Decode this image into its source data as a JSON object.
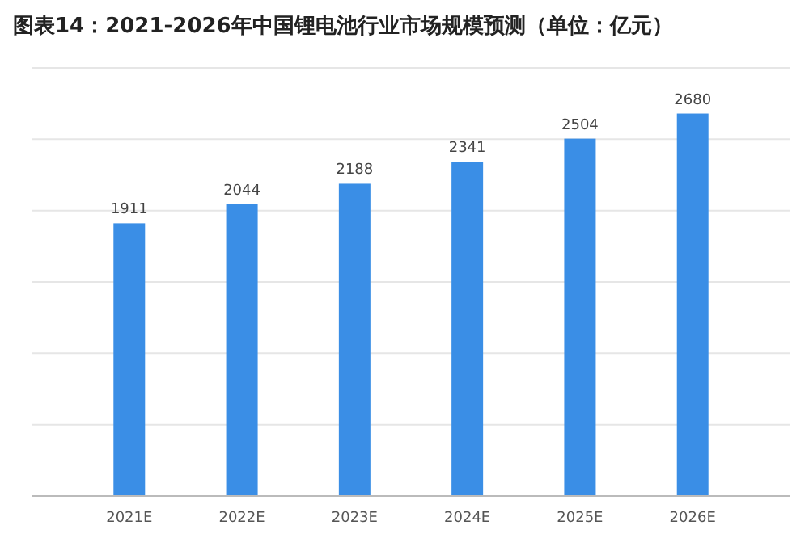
{
  "chart_data": {
    "type": "bar",
    "title": "图表14：2021-2026年中国锂电池行业市场规模预测（单位：亿元）",
    "categories": [
      "2021E",
      "2022E",
      "2023E",
      "2024E",
      "2025E",
      "2026E"
    ],
    "values": [
      1911,
      2044,
      2188,
      2341,
      2504,
      2680
    ],
    "color": "#3a8ee6",
    "ylim": [
      0,
      3000
    ],
    "yticks": [
      {
        "value": 0,
        "label": null
      },
      {
        "value": 500,
        "label": null
      },
      {
        "value": 1000,
        "label": null
      },
      {
        "value": 1500,
        "label": null
      },
      {
        "value": 2000,
        "label": null
      },
      {
        "value": 2500,
        "label": null
      },
      {
        "value": 3000,
        "label": null
      }
    ],
    "grid": "y",
    "tick_labels": "x",
    "data_labels": true
  }
}
